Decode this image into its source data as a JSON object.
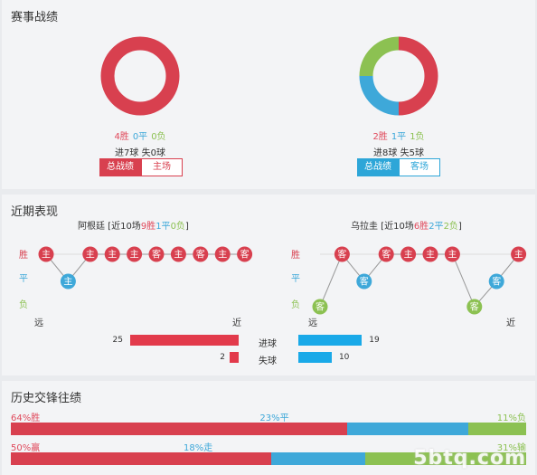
{
  "colors": {
    "win": "#d8404f",
    "draw": "#3ea8d9",
    "loss": "#8cc152",
    "goal_bar_left": "#e23a4b",
    "goal_bar_right": "#19a9e8",
    "line": "#999999"
  },
  "record": {
    "title": "赛事战绩",
    "left": {
      "wins": 4,
      "draws": 0,
      "losses": 0,
      "w_text": "4胜",
      "d_text": "0平",
      "l_text": "0负",
      "goals_text": "进7球 失0球",
      "btn_total": "总战绩",
      "btn_side": "主场",
      "active": "total"
    },
    "right": {
      "wins": 2,
      "draws": 1,
      "losses": 1,
      "w_text": "2胜",
      "d_text": "1平",
      "l_text": "1负",
      "goals_text": "进8球 失5球",
      "btn_total": "总战绩",
      "btn_side": "客场",
      "active": "total"
    }
  },
  "recent": {
    "title": "近期表现",
    "row_labels": {
      "win": "胜",
      "draw": "平",
      "loss": "负"
    },
    "far_label": "远",
    "near_label": "近",
    "left": {
      "team": "阿根廷",
      "summary_prefix": " [近10场",
      "wins_text": "9胜",
      "draws_text": "1平",
      "losses_text": "0负",
      "summary_suffix": "]",
      "games": [
        {
          "result": "W",
          "venue": "主"
        },
        {
          "result": "D",
          "venue": "主"
        },
        {
          "result": "W",
          "venue": "主"
        },
        {
          "result": "W",
          "venue": "主"
        },
        {
          "result": "W",
          "venue": "主"
        },
        {
          "result": "W",
          "venue": "客"
        },
        {
          "result": "W",
          "venue": "主"
        },
        {
          "result": "W",
          "venue": "客"
        },
        {
          "result": "W",
          "venue": "主"
        },
        {
          "result": "W",
          "venue": "客"
        }
      ]
    },
    "right": {
      "team": "乌拉圭",
      "summary_prefix": " [近10场",
      "wins_text": "6胜",
      "draws_text": "2平",
      "losses_text": "2负",
      "summary_suffix": "]",
      "games": [
        {
          "result": "L",
          "venue": "客"
        },
        {
          "result": "W",
          "venue": "客"
        },
        {
          "result": "D",
          "venue": "客"
        },
        {
          "result": "W",
          "venue": "客"
        },
        {
          "result": "W",
          "venue": "主"
        },
        {
          "result": "W",
          "venue": "主"
        },
        {
          "result": "W",
          "venue": "主"
        },
        {
          "result": "L",
          "venue": "客"
        },
        {
          "result": "D",
          "venue": "客"
        },
        {
          "result": "W",
          "venue": "主"
        }
      ]
    },
    "goals_label": "进球",
    "conceded_label": "失球",
    "left_goals": 25,
    "left_conceded": 2,
    "right_goals": 19,
    "right_conceded": 10
  },
  "h2h": {
    "title": "历史交锋往绩",
    "row1": {
      "a": 64,
      "b": 23,
      "c": 11,
      "a_text": "64%胜",
      "b_text": "23%平",
      "c_text": "11%负"
    },
    "row2": {
      "a": 50,
      "b": 18,
      "c": 31,
      "a_text": "50%赢",
      "b_text": "18%走",
      "c_text": "31%输"
    }
  },
  "watermark": "5btq.com"
}
